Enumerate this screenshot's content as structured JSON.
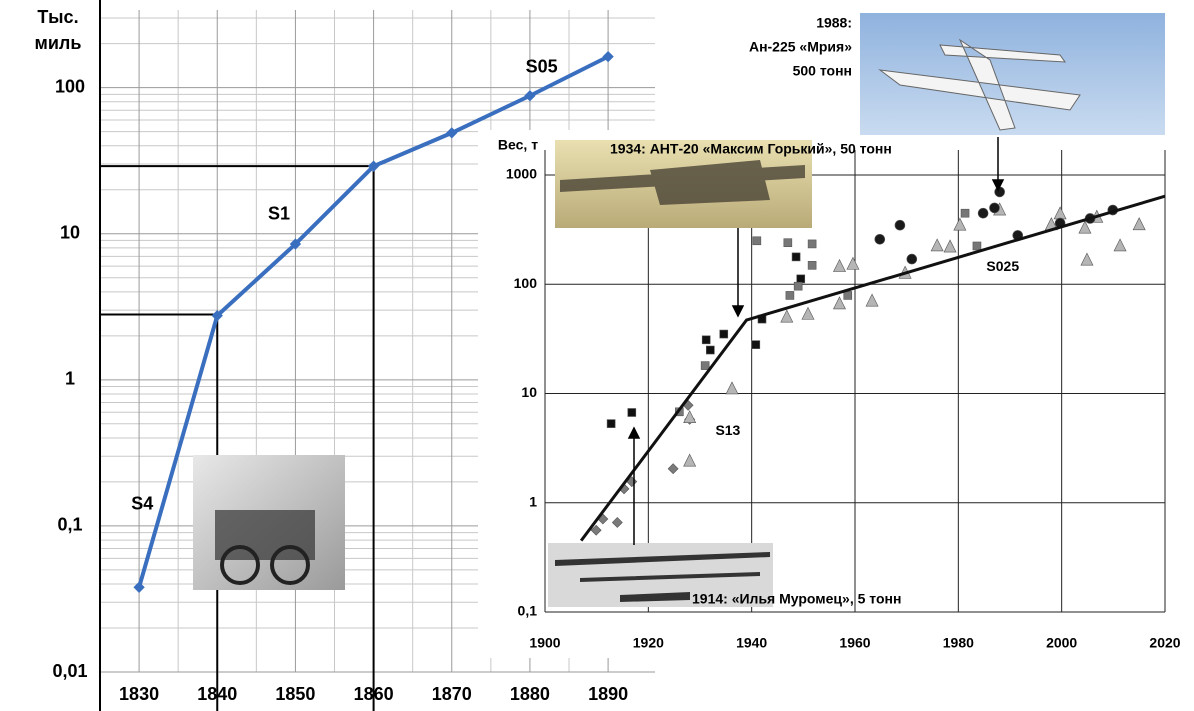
{
  "chart_data": [
    {
      "type": "line",
      "ylabel_lines": [
        "Тыс.",
        "миль"
      ],
      "x": [
        1830,
        1840,
        1850,
        1860,
        1870,
        1880,
        1890
      ],
      "values": [
        0.038,
        2.75,
        8.5,
        29,
        49,
        88,
        163
      ],
      "color": "#3a6fbf",
      "xlim": [
        1825,
        1896
      ],
      "ylim": [
        0.01,
        340
      ],
      "ylog": true,
      "xticks": [
        1830,
        1840,
        1850,
        1860,
        1870,
        1880,
        1890
      ],
      "yticks": [
        {
          "value": 0.01,
          "label": "0,01"
        },
        {
          "value": 0.1,
          "label": "0,1"
        },
        1,
        10,
        100
      ],
      "grid": true,
      "minor_grid": true,
      "guides": [
        {
          "x": 1840,
          "y": 2.8
        },
        {
          "x": 1860,
          "y": 29
        }
      ],
      "annotations": [
        {
          "text": "S4",
          "x": 1830.4,
          "y": 0.14
        },
        {
          "text": "S1",
          "x": 1847.9,
          "y": 13.5
        },
        {
          "text": "S05",
          "x": 1881.5,
          "y": 137
        }
      ]
    },
    {
      "type": "scatter",
      "ylabel": "Вес, т",
      "xlim": [
        1900,
        2020
      ],
      "ylim": [
        0.1,
        1000
      ],
      "ylog": true,
      "xticks": [
        1900,
        1920,
        1940,
        1960,
        1980,
        2000,
        2020
      ],
      "yticks": [
        {
          "value": 0.1,
          "label": "0,1"
        },
        1,
        10,
        100,
        1000
      ],
      "grid": true,
      "series": [
        {
          "marker": "square",
          "color": "#111111",
          "x": [
            1912.8,
            1916.8,
            1931.2,
            1932,
            1934.6,
            1942,
            1940.8,
            1948.6,
            1949.5
          ],
          "values": [
            5.3,
            6.7,
            31,
            25,
            35,
            48,
            28,
            178,
            112
          ]
        },
        {
          "marker": "square",
          "color": "#777777",
          "x": [
            1926,
            1931,
            1941,
            1947,
            1951.7,
            1951.7,
            1958.6,
            1981.3,
            1983.6,
            1949,
            1947.4
          ],
          "values": [
            6.8,
            18,
            250,
            240,
            234,
            149,
            79,
            447,
            224,
            96,
            79
          ]
        },
        {
          "marker": "diamond",
          "color": "#7a7a7a",
          "x": [
            1909.9,
            1911.2,
            1914,
            1915.3,
            1916.8,
            1924.8,
            1928,
            1927.7
          ],
          "values": [
            0.56,
            0.71,
            0.66,
            1.34,
            1.56,
            2.05,
            5.8,
            7.8
          ]
        },
        {
          "marker": "triangle",
          "color": "#b5b5b5",
          "x": [
            1928,
            1928,
            1936.2,
            1946.8,
            1950.9,
            1957,
            1957,
            1959.6,
            1963.3,
            1969.7,
            1975.9,
            1978.4,
            1980.3,
            1988,
            1998,
            1999.7,
            2006.8,
            2004.9,
            2011.3,
            2015,
            2004.5
          ],
          "values": [
            2.4,
            6,
            11,
            50,
            53,
            66,
            145,
            152,
            70,
            126,
            224,
            219,
            347,
            478,
            350,
            440,
            410,
            166,
            224,
            350,
            326
          ]
        },
        {
          "marker": "circle",
          "color": "#1a1a1a",
          "x": [
            1964.8,
            1971,
            1984.8,
            1987,
            1988,
            1991.5,
            1999.7,
            2005.5,
            2009.9,
            1968.7
          ],
          "values": [
            258,
            170,
            447,
            500,
            700,
            280,
            363,
            400,
            478,
            347
          ]
        },
        {
          "marker": "line",
          "color": "#111111",
          "x": [
            1907,
            1939,
            2020
          ],
          "values": [
            0.45,
            47,
            640
          ]
        }
      ],
      "annotations": [
        {
          "text": "S13",
          "x": 1935.4,
          "y": 4.5
        },
        {
          "text": "S025",
          "x": 1988.6,
          "y": 143
        }
      ],
      "captions": [
        [
          "1988:",
          "Ан-225 «Мрия»",
          "500 тонн"
        ],
        [
          "1934: АНТ-20 «Максим Горький», 50 тонн"
        ],
        [
          "1914: «Илья Муромец», 5 тонн"
        ]
      ]
    }
  ]
}
